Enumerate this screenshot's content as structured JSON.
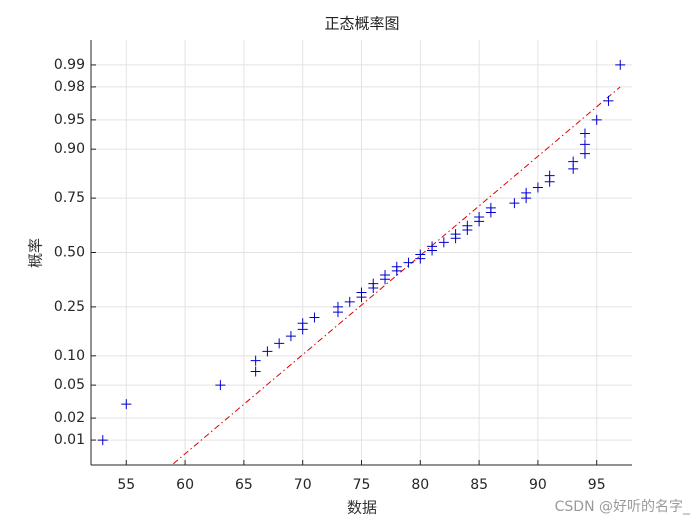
{
  "chart_data": {
    "type": "normplot",
    "title": "正态概率图",
    "xlabel": "数据",
    "ylabel": "概率",
    "watermark": "CSDN @好听的名字_",
    "yscale": "normal-probability",
    "grid": true,
    "color": "#0000cc",
    "x": [
      53,
      55,
      63,
      66,
      66,
      67,
      68,
      69,
      70,
      70,
      71,
      73,
      73,
      74,
      75,
      75,
      76,
      76,
      77,
      77,
      78,
      78,
      79,
      80,
      80,
      81,
      81,
      82,
      83,
      83,
      84,
      84,
      85,
      85,
      86,
      86,
      88,
      89,
      89,
      90,
      91,
      91,
      93,
      93,
      94,
      94,
      94,
      95,
      96,
      97
    ],
    "values": [
      0.01,
      0.03,
      0.05,
      0.07,
      0.09,
      0.11,
      0.13,
      0.15,
      0.17,
      0.19,
      0.21,
      0.23,
      0.25,
      0.27,
      0.29,
      0.31,
      0.33,
      0.35,
      0.37,
      0.39,
      0.41,
      0.43,
      0.45,
      0.47,
      0.49,
      0.51,
      0.53,
      0.55,
      0.57,
      0.59,
      0.61,
      0.63,
      0.65,
      0.67,
      0.69,
      0.71,
      0.73,
      0.75,
      0.77,
      0.79,
      0.81,
      0.83,
      0.85,
      0.87,
      0.89,
      0.91,
      0.93,
      0.95,
      0.97,
      0.99
    ],
    "reference_line": {
      "color": "#e00000",
      "x": [
        59,
        97
      ],
      "y": [
        0.0044,
        0.98
      ]
    },
    "xlim": [
      52,
      98
    ],
    "xticks": [
      55,
      60,
      65,
      70,
      75,
      80,
      85,
      90,
      95
    ],
    "ylim": [
      0.0042,
      0.9958
    ],
    "yticks": [
      0.01,
      0.02,
      0.05,
      {
        "value": 0.1,
        "label": "0.10"
      },
      0.25,
      {
        "value": 0.5,
        "label": "0.50"
      },
      0.75,
      {
        "value": 0.9,
        "label": "0.90"
      },
      0.95,
      0.98,
      0.99
    ]
  }
}
